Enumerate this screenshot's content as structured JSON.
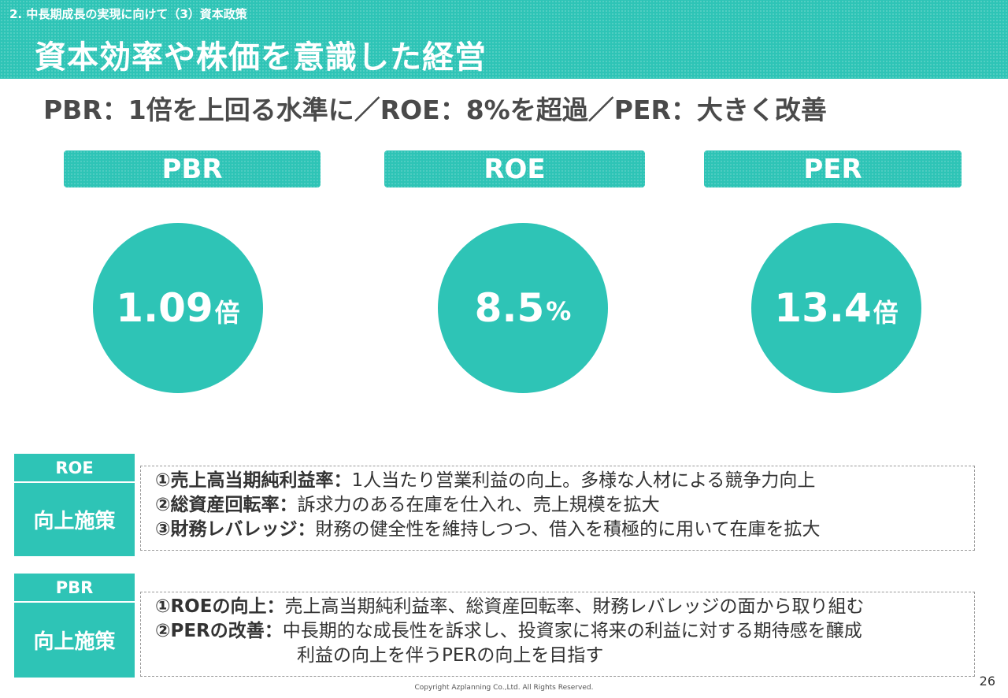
{
  "header": {
    "breadcrumb": "2. 中長期成長の実現に向けて（3）資本政策",
    "title": "資本効率や株価を意識した経営"
  },
  "subtitle": "PBR：1倍を上回る水準に／ROE：8%を超過／PER：大きく改善",
  "metrics": [
    {
      "label": "PBR",
      "value": "1.09",
      "unit": "倍"
    },
    {
      "label": "ROE",
      "value": "8.5",
      "unit": "%"
    },
    {
      "label": "PER",
      "value": "13.4",
      "unit": "倍"
    }
  ],
  "roe_section": {
    "tag_top": "ROE",
    "tag_bottom": "向上施策",
    "items": [
      {
        "head": "①売上高当期純利益率：",
        "text": "1人当たり営業利益の向上。多様な人材による競争力向上"
      },
      {
        "head": "②総資産回転率：",
        "text": "訴求力のある在庫を仕入れ、売上規模を拡大"
      },
      {
        "head": "③財務レバレッジ：",
        "text": "財務の健全性を維持しつつ、借入を積極的に用いて在庫を拡大"
      }
    ]
  },
  "pbr_section": {
    "tag_top": "PBR",
    "tag_bottom": "向上施策",
    "items": [
      {
        "head": "①ROEの向上：",
        "text": "売上高当期純利益率、総資産回転率、財務レバレッジの面から取り組む"
      },
      {
        "head": "②PERの改善：",
        "text": "中長期的な成長性を訴求し、投資家に将来の利益に対する期待感を醸成"
      }
    ],
    "continuation": "利益の向上を伴うPERの向上を目指す"
  },
  "footer": {
    "copyright": "Copyright Azplanning Co.,Ltd. All Rights Reserved.",
    "page_number": "26"
  },
  "colors": {
    "accent": "#2ec4b6",
    "text": "#333333"
  }
}
